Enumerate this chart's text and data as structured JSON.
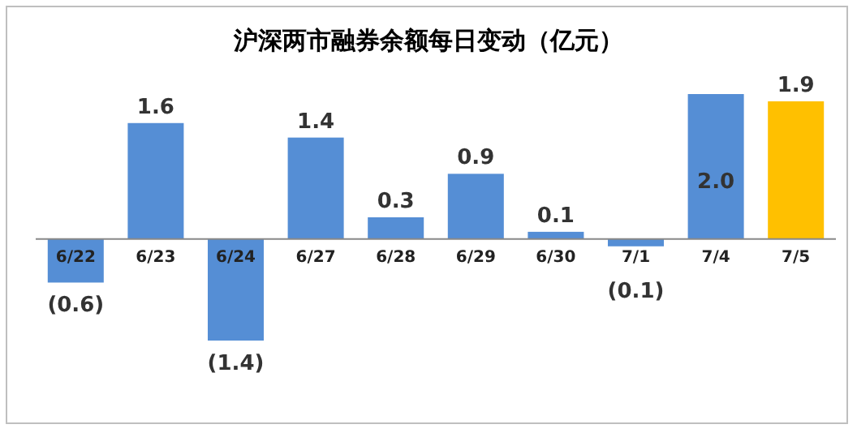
{
  "chart_data": {
    "type": "bar",
    "title": "沪深两市融券余额每日变动（亿元）",
    "categories": [
      "6/22",
      "6/23",
      "6/24",
      "6/27",
      "6/28",
      "6/29",
      "6/30",
      "7/1",
      "7/4",
      "7/5"
    ],
    "values": [
      -0.6,
      1.6,
      -1.4,
      1.4,
      0.3,
      0.9,
      0.1,
      -0.1,
      2.0,
      1.9
    ],
    "colors": [
      "#558ed5",
      "#558ed5",
      "#558ed5",
      "#558ed5",
      "#558ed5",
      "#558ed5",
      "#558ed5",
      "#558ed5",
      "#558ed5",
      "#ffc000"
    ],
    "value_labels": [
      "(0.6)",
      "1.6",
      "(1.4)",
      "1.4",
      "0.3",
      "0.9",
      "0.1",
      "(0.1)",
      "2.0",
      "1.9"
    ]
  }
}
